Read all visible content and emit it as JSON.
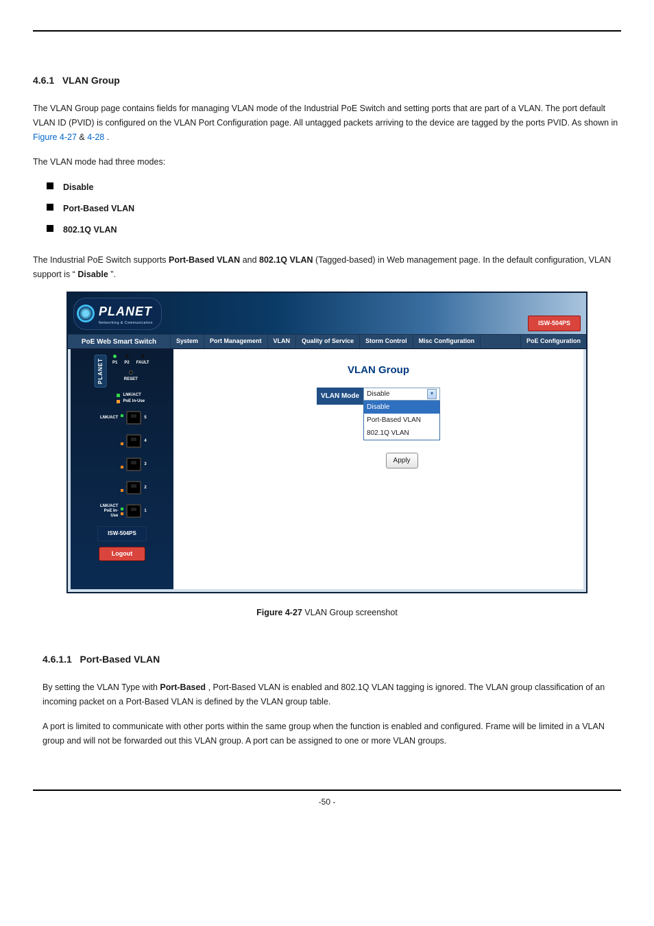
{
  "header": {
    "manual_title_left": "",
    "manual_title_right": ""
  },
  "section": {
    "num": "4.6.1",
    "title": "VLAN Group"
  },
  "intro": {
    "sentence1_a": "The VLAN Group page contains fields for managing VLAN mode of the Industrial PoE Switch and setting ports that are part of a VLAN. The port default VLAN ID (PVID) is configured on the VLAN Port Configuration page. All untagged packets arriving to the device are tagged by the ports PVID. As shown in ",
    "link1": "Figure 4-27",
    "amp": " & ",
    "link2": "4-28",
    "tail": ".",
    "modes_lead": "The VLAN mode had three modes:",
    "bullets": [
      "Disable",
      "Port-Based VLAN",
      "802.1Q VLAN"
    ],
    "support_a": "The Industrial PoE Switch supports ",
    "support_b": "Port-Based VLAN",
    "support_c": " and ",
    "support_d": "802.1Q VLAN",
    "support_e": " (Tagged-based) in Web management page. In the default configuration, VLAN support is “",
    "support_f": "Disable",
    "support_g": "”."
  },
  "ui": {
    "logo_text": "PLANET",
    "logo_sub": "Networking & Communication",
    "model_badge": "ISW-504PS",
    "side_title": "PoE Web Smart Switch",
    "menu": [
      "System",
      "Port Management",
      "VLAN",
      "Quality of Service",
      "Storm Control",
      "Misc Configuration",
      "PoE Configuration"
    ],
    "device": {
      "leds": [
        {
          "label": "P1",
          "color": "#33e24f"
        },
        {
          "label": "P2",
          "color": "#111111"
        },
        {
          "label": "FAULT",
          "color": "#111111"
        }
      ],
      "reset": "RESET",
      "legend": [
        {
          "color": "#31d843",
          "label": "LNK/ACT"
        },
        {
          "color": "#ff9a2e",
          "label": "PoE In-Use"
        }
      ],
      "ports": [
        {
          "num": "5",
          "lnk": "#31d843",
          "poe": "#0c2342",
          "label_left": "LNK/ACT"
        },
        {
          "num": "4",
          "lnk": "#0c2342",
          "poe": "#ff8a1f",
          "label_left": ""
        },
        {
          "num": "3",
          "lnk": "#0c2342",
          "poe": "#ff8a1f",
          "label_left": ""
        },
        {
          "num": "2",
          "lnk": "#0c2342",
          "poe": "#ff8a1f",
          "label_left": ""
        },
        {
          "num": "1",
          "lnk": "#31d843",
          "poe": "#ff8a1f",
          "label_left": "LNK/ACT",
          "label_left2": "PoE In-Use"
        }
      ],
      "model": "ISW-504PS",
      "logout": "Logout",
      "planet_vert": "PLANET"
    },
    "main": {
      "title": "VLAN Group",
      "mode_label": "VLAN Mode",
      "selected": "Disable",
      "options": [
        "Disable",
        "Port-Based VLAN",
        "802.1Q VLAN"
      ],
      "apply": "Apply"
    }
  },
  "figure": {
    "label_bold": "Figure 4-27",
    "label_rest": " VLAN Group screenshot"
  },
  "section2": {
    "num": "4.6.1.1",
    "title": "Port-Based VLAN",
    "p1_a": "By setting the VLAN Type with ",
    "p1_b": "Port-Based",
    "p1_c": ", Port-Based VLAN is enabled and 802.1Q VLAN tagging is ignored. The VLAN group classification of an incoming packet on a Port-Based VLAN is defined by the VLAN group table.",
    "p2": "A port is limited to communicate with other ports within the same group when the function is enabled and configured. Frame will be limited in a VLAN group and will not be forwarded out this VLAN group. A port can be assigned to one or more VLAN groups."
  },
  "footer": {
    "page": "-50 -"
  },
  "colors": {
    "link": "#0066cc",
    "banner_dark": "#08213e",
    "red": "#d9443c",
    "menubar": "#27476b"
  }
}
